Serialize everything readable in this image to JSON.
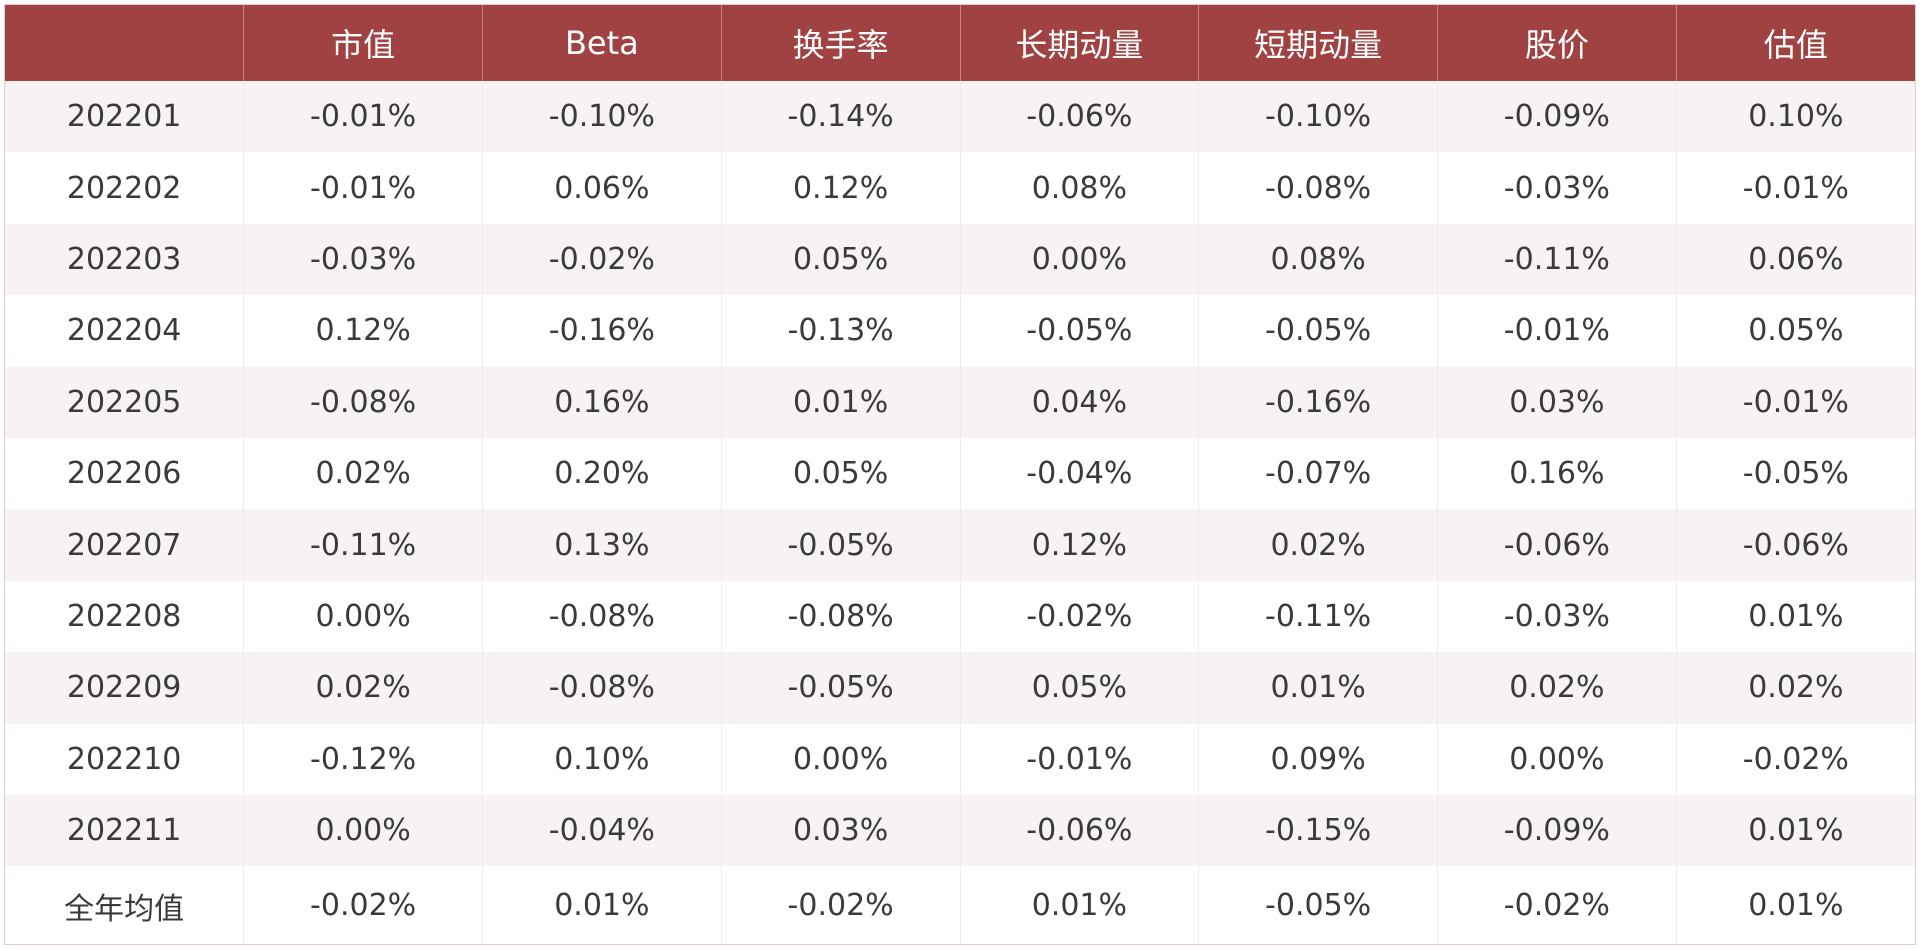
{
  "table": {
    "headers": [
      "",
      "市值",
      "Beta",
      "换手率",
      "长期动量",
      "短期动量",
      "股价",
      "估值"
    ],
    "rows": [
      [
        "202201",
        "-0.01%",
        "-0.10%",
        "-0.14%",
        "-0.06%",
        "-0.10%",
        "-0.09%",
        "0.10%"
      ],
      [
        "202202",
        "-0.01%",
        "0.06%",
        "0.12%",
        "0.08%",
        "-0.08%",
        "-0.03%",
        "-0.01%"
      ],
      [
        "202203",
        "-0.03%",
        "-0.02%",
        "0.05%",
        "0.00%",
        "0.08%",
        "-0.11%",
        "0.06%"
      ],
      [
        "202204",
        "0.12%",
        "-0.16%",
        "-0.13%",
        "-0.05%",
        "-0.05%",
        "-0.01%",
        "0.05%"
      ],
      [
        "202205",
        "-0.08%",
        "0.16%",
        "0.01%",
        "0.04%",
        "-0.16%",
        "0.03%",
        "-0.01%"
      ],
      [
        "202206",
        "0.02%",
        "0.20%",
        "0.05%",
        "-0.04%",
        "-0.07%",
        "0.16%",
        "-0.05%"
      ],
      [
        "202207",
        "-0.11%",
        "0.13%",
        "-0.05%",
        "0.12%",
        "0.02%",
        "-0.06%",
        "-0.06%"
      ],
      [
        "202208",
        "0.00%",
        "-0.08%",
        "-0.08%",
        "-0.02%",
        "-0.11%",
        "-0.03%",
        "0.01%"
      ],
      [
        "202209",
        "0.02%",
        "-0.08%",
        "-0.05%",
        "0.05%",
        "0.01%",
        "0.02%",
        "0.02%"
      ],
      [
        "202210",
        "-0.12%",
        "0.10%",
        "0.00%",
        "-0.01%",
        "0.09%",
        "0.00%",
        "-0.02%"
      ],
      [
        "202211",
        "0.00%",
        "-0.04%",
        "0.03%",
        "-0.06%",
        "-0.15%",
        "-0.09%",
        "0.01%"
      ],
      [
        "全年均值",
        "-0.02%",
        "0.01%",
        "-0.02%",
        "0.01%",
        "-0.05%",
        "-0.02%",
        "0.01%"
      ]
    ]
  },
  "colors": {
    "header_background": "#a04142",
    "header_text": "#ffffff",
    "stripe_background": "#f7f2f4",
    "row_background": "#ffffff",
    "cell_text": "#3a3a3a"
  }
}
